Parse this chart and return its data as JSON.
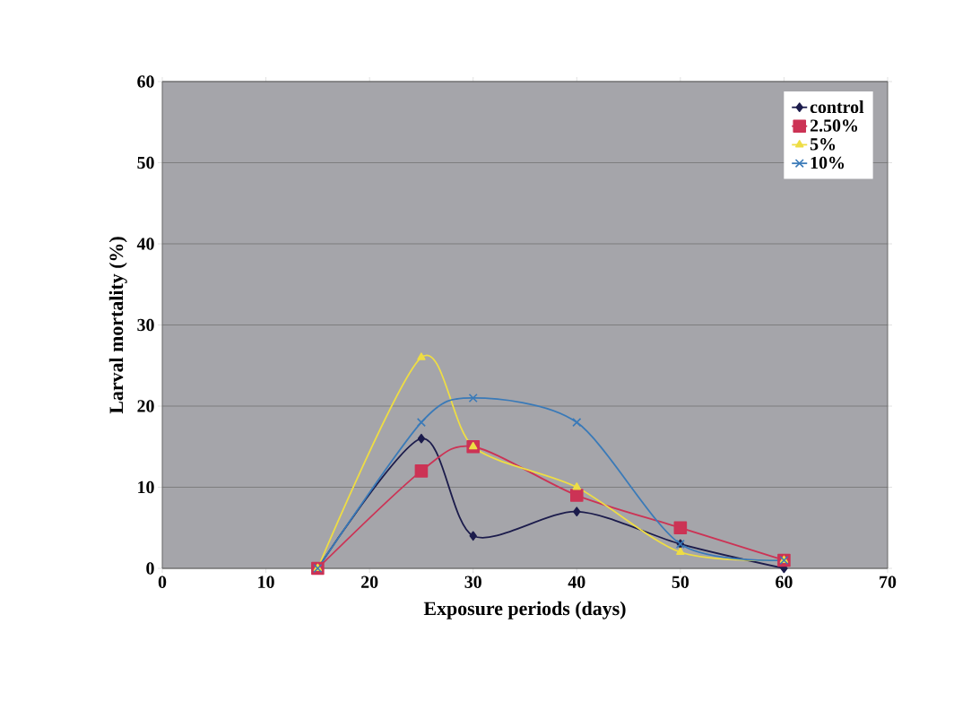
{
  "chart_data": {
    "type": "line",
    "xlabel": "Exposure periods (days)",
    "ylabel": "Larval mortality (%)",
    "x": [
      15,
      25,
      30,
      40,
      50,
      60
    ],
    "series": [
      {
        "name": "control",
        "color": "#1c1c4c",
        "marker": "diamond",
        "values": [
          0,
          16,
          4,
          7,
          3,
          0
        ]
      },
      {
        "name": "2.50%",
        "color": "#cc3355",
        "marker": "square",
        "values": [
          0,
          12,
          15,
          9,
          5,
          1
        ]
      },
      {
        "name": "5%",
        "color": "#eedd44",
        "marker": "triangle",
        "values": [
          0,
          26,
          15,
          10,
          2,
          1
        ]
      },
      {
        "name": "10%",
        "color": "#3a7ab8",
        "marker": "cross",
        "values": [
          0,
          18,
          21,
          18,
          3,
          1
        ]
      }
    ],
    "xlim": [
      0,
      70
    ],
    "ylim": [
      0,
      60
    ],
    "xticks": [
      0,
      10,
      20,
      30,
      40,
      50,
      60,
      70
    ],
    "yticks": [
      0,
      10,
      20,
      30,
      40,
      50,
      60
    ],
    "grid": "y",
    "legend": "top right",
    "line_style": "solid"
  }
}
